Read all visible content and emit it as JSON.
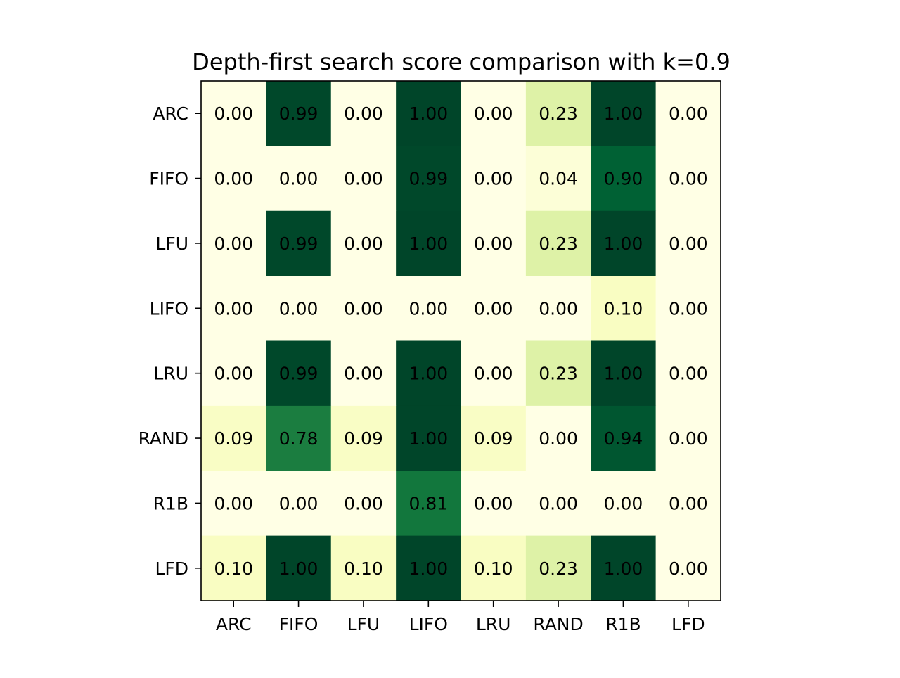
{
  "chart_data": {
    "type": "heatmap",
    "title": "Depth-first search score comparison with k=0.9",
    "xlabel": "",
    "ylabel": "",
    "x_labels": [
      "ARC",
      "FIFO",
      "LFU",
      "LIFO",
      "LRU",
      "RAND",
      "R1B",
      "LFD"
    ],
    "y_labels": [
      "ARC",
      "FIFO",
      "LFU",
      "LIFO",
      "LRU",
      "RAND",
      "R1B",
      "LFD"
    ],
    "values": [
      [
        0.0,
        0.99,
        0.0,
        1.0,
        0.0,
        0.23,
        1.0,
        0.0
      ],
      [
        0.0,
        0.0,
        0.0,
        0.99,
        0.0,
        0.04,
        0.9,
        0.0
      ],
      [
        0.0,
        0.99,
        0.0,
        1.0,
        0.0,
        0.23,
        1.0,
        0.0
      ],
      [
        0.0,
        0.0,
        0.0,
        0.0,
        0.0,
        0.0,
        0.1,
        0.0
      ],
      [
        0.0,
        0.99,
        0.0,
        1.0,
        0.0,
        0.23,
        1.0,
        0.0
      ],
      [
        0.09,
        0.78,
        0.09,
        1.0,
        0.09,
        0.0,
        0.94,
        0.0
      ],
      [
        0.0,
        0.0,
        0.0,
        0.81,
        0.0,
        0.0,
        0.0,
        0.0
      ],
      [
        0.1,
        1.0,
        0.1,
        1.0,
        0.1,
        0.23,
        1.0,
        0.0
      ]
    ],
    "value_format": "2 decimals",
    "colormap": "YlGn",
    "vmin": 0,
    "vmax": 1,
    "grid": false,
    "legend": "none"
  }
}
